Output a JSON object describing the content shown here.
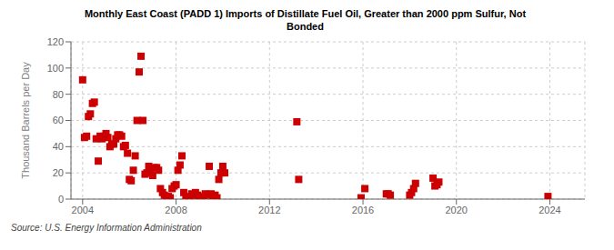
{
  "chart_data": {
    "type": "scatter",
    "title": "Monthly East Coast (PADD 1) Imports of Distillate Fuel Oil, Greater than 2000 ppm Sulfur, Not\nBonded",
    "ylabel": "Thousand Barrels per Day",
    "source": "Source: U.S. Energy Information Administration",
    "color": "#cc0000",
    "marker": "square",
    "grid": true,
    "xlim": [
      2003.5,
      2025.5
    ],
    "xticks": [
      2004,
      2008,
      2012,
      2016,
      2020,
      2024
    ],
    "ylim": [
      0,
      120
    ],
    "yticks": [
      0,
      20,
      40,
      60,
      80,
      100,
      120
    ],
    "x": [
      2004.0,
      2004.08,
      2004.17,
      2004.25,
      2004.33,
      2004.42,
      2004.5,
      2004.58,
      2004.67,
      2004.75,
      2004.83,
      2004.92,
      2005.0,
      2005.08,
      2005.17,
      2005.25,
      2005.33,
      2005.42,
      2005.5,
      2005.58,
      2005.67,
      2005.75,
      2005.83,
      2005.92,
      2006.0,
      2006.08,
      2006.17,
      2006.25,
      2006.33,
      2006.42,
      2006.5,
      2006.58,
      2006.67,
      2006.75,
      2006.83,
      2006.92,
      2007.0,
      2007.08,
      2007.17,
      2007.25,
      2007.33,
      2007.42,
      2007.5,
      2007.58,
      2007.67,
      2007.75,
      2007.83,
      2007.92,
      2008.0,
      2008.08,
      2008.17,
      2008.25,
      2008.33,
      2008.42,
      2008.5,
      2008.58,
      2008.67,
      2008.75,
      2008.83,
      2008.92,
      2009.0,
      2009.08,
      2009.17,
      2009.25,
      2009.33,
      2009.42,
      2009.5,
      2009.58,
      2009.67,
      2009.75,
      2009.83,
      2009.92,
      2010.0,
      2010.08,
      2013.17,
      2013.25,
      2015.92,
      2016.08,
      2017.0,
      2017.08,
      2017.17,
      2018.0,
      2018.08,
      2018.17,
      2018.25,
      2019.0,
      2019.08,
      2019.17,
      2019.25,
      2023.92
    ],
    "values": [
      91.0,
      47.0,
      48.0,
      63.0,
      65.0,
      73.0,
      74.0,
      46.0,
      29.0,
      48.0,
      46.0,
      48.0,
      50.0,
      47.0,
      40.0,
      42.0,
      42.0,
      46.0,
      49.0,
      49.0,
      48.0,
      40.0,
      41.0,
      35.0,
      15.0,
      14.0,
      22.0,
      33.0,
      60.0,
      97.0,
      109.0,
      60.0,
      19.0,
      20.0,
      25.0,
      20.0,
      18.0,
      24.0,
      24.0,
      22.0,
      8.0,
      5.0,
      3.0,
      2.0,
      2.0,
      1.0,
      8.0,
      10.0,
      11.0,
      22.0,
      26.0,
      33.0,
      5.0,
      1.0,
      1.0,
      2.0,
      4.0,
      3.0,
      5.0,
      3.0,
      1.0,
      1.0,
      2.0,
      4.0,
      3.0,
      25.0,
      4.0,
      1.0,
      3.0,
      1.0,
      15.0,
      20.0,
      25.0,
      20.0,
      59.0,
      15.0,
      1.0,
      8.0,
      4.0,
      4.0,
      3.0,
      3.0,
      5.0,
      8.0,
      12.0,
      16.0,
      10.0,
      11.0,
      13.0,
      2.0
    ]
  }
}
